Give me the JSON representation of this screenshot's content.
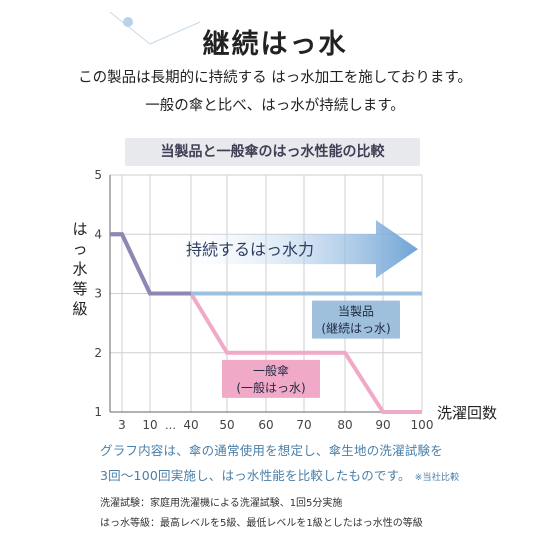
{
  "heading": {
    "title": "継続はっ水",
    "line1": "この製品は長期的に持続する はっ水加工を施しております。",
    "line2": "一般の傘と比べ、はっ水が持続します。"
  },
  "banner": "当製品と一般傘のはっ水性能の比較",
  "chart_data": {
    "type": "line",
    "ylabel": "はっ水等級",
    "xlabel": "洗濯回数",
    "x_ticks": [
      "3",
      "10",
      "40",
      "50",
      "60",
      "70",
      "80",
      "90",
      "100"
    ],
    "axis_break": "…",
    "y_ticks": [
      "1",
      "2",
      "3",
      "4",
      "5"
    ],
    "ylim": [
      1,
      5
    ],
    "grid": true,
    "series": [
      {
        "name": "当製品(継続はっ水)",
        "label_lines": [
          "当製品",
          "(継続はっ水)"
        ],
        "color": "#9fc0dc",
        "points": [
          {
            "x": "0",
            "y": 4
          },
          {
            "x": "3",
            "y": 4
          },
          {
            "x": "10",
            "y": 3
          },
          {
            "x": "40",
            "y": 3
          },
          {
            "x": "100",
            "y": 3
          }
        ]
      },
      {
        "name": "一般傘(一般はっ水)",
        "label_lines": [
          "一般傘",
          "(一般はっ水)"
        ],
        "color": "#f1a9c8",
        "points": [
          {
            "x": "0",
            "y": 4
          },
          {
            "x": "3",
            "y": 4
          },
          {
            "x": "10",
            "y": 3
          },
          {
            "x": "40",
            "y": 3
          },
          {
            "x": "50",
            "y": 2
          },
          {
            "x": "80",
            "y": 2
          },
          {
            "x": "90",
            "y": 1
          },
          {
            "x": "100",
            "y": 1
          }
        ]
      }
    ],
    "overlap_color": "#8e86b3",
    "arrow_label": "持続するはっ水力",
    "arrow_color": "#6fa3d6"
  },
  "notes": {
    "line1": "グラフ内容は、傘の通常使用を想定し、傘生地の洗濯試験を",
    "line2": "3回〜100回実施し、はっ水性能を比較したものです。",
    "line2_small": "※当社比較"
  },
  "footnotes": {
    "wash": "洗濯試験：家庭用洗濯機による洗濯試験、1回5分実施",
    "grade": "はっ水等級：最高レベルを5級、最低レベルを1級としたはっ水性の等級"
  }
}
